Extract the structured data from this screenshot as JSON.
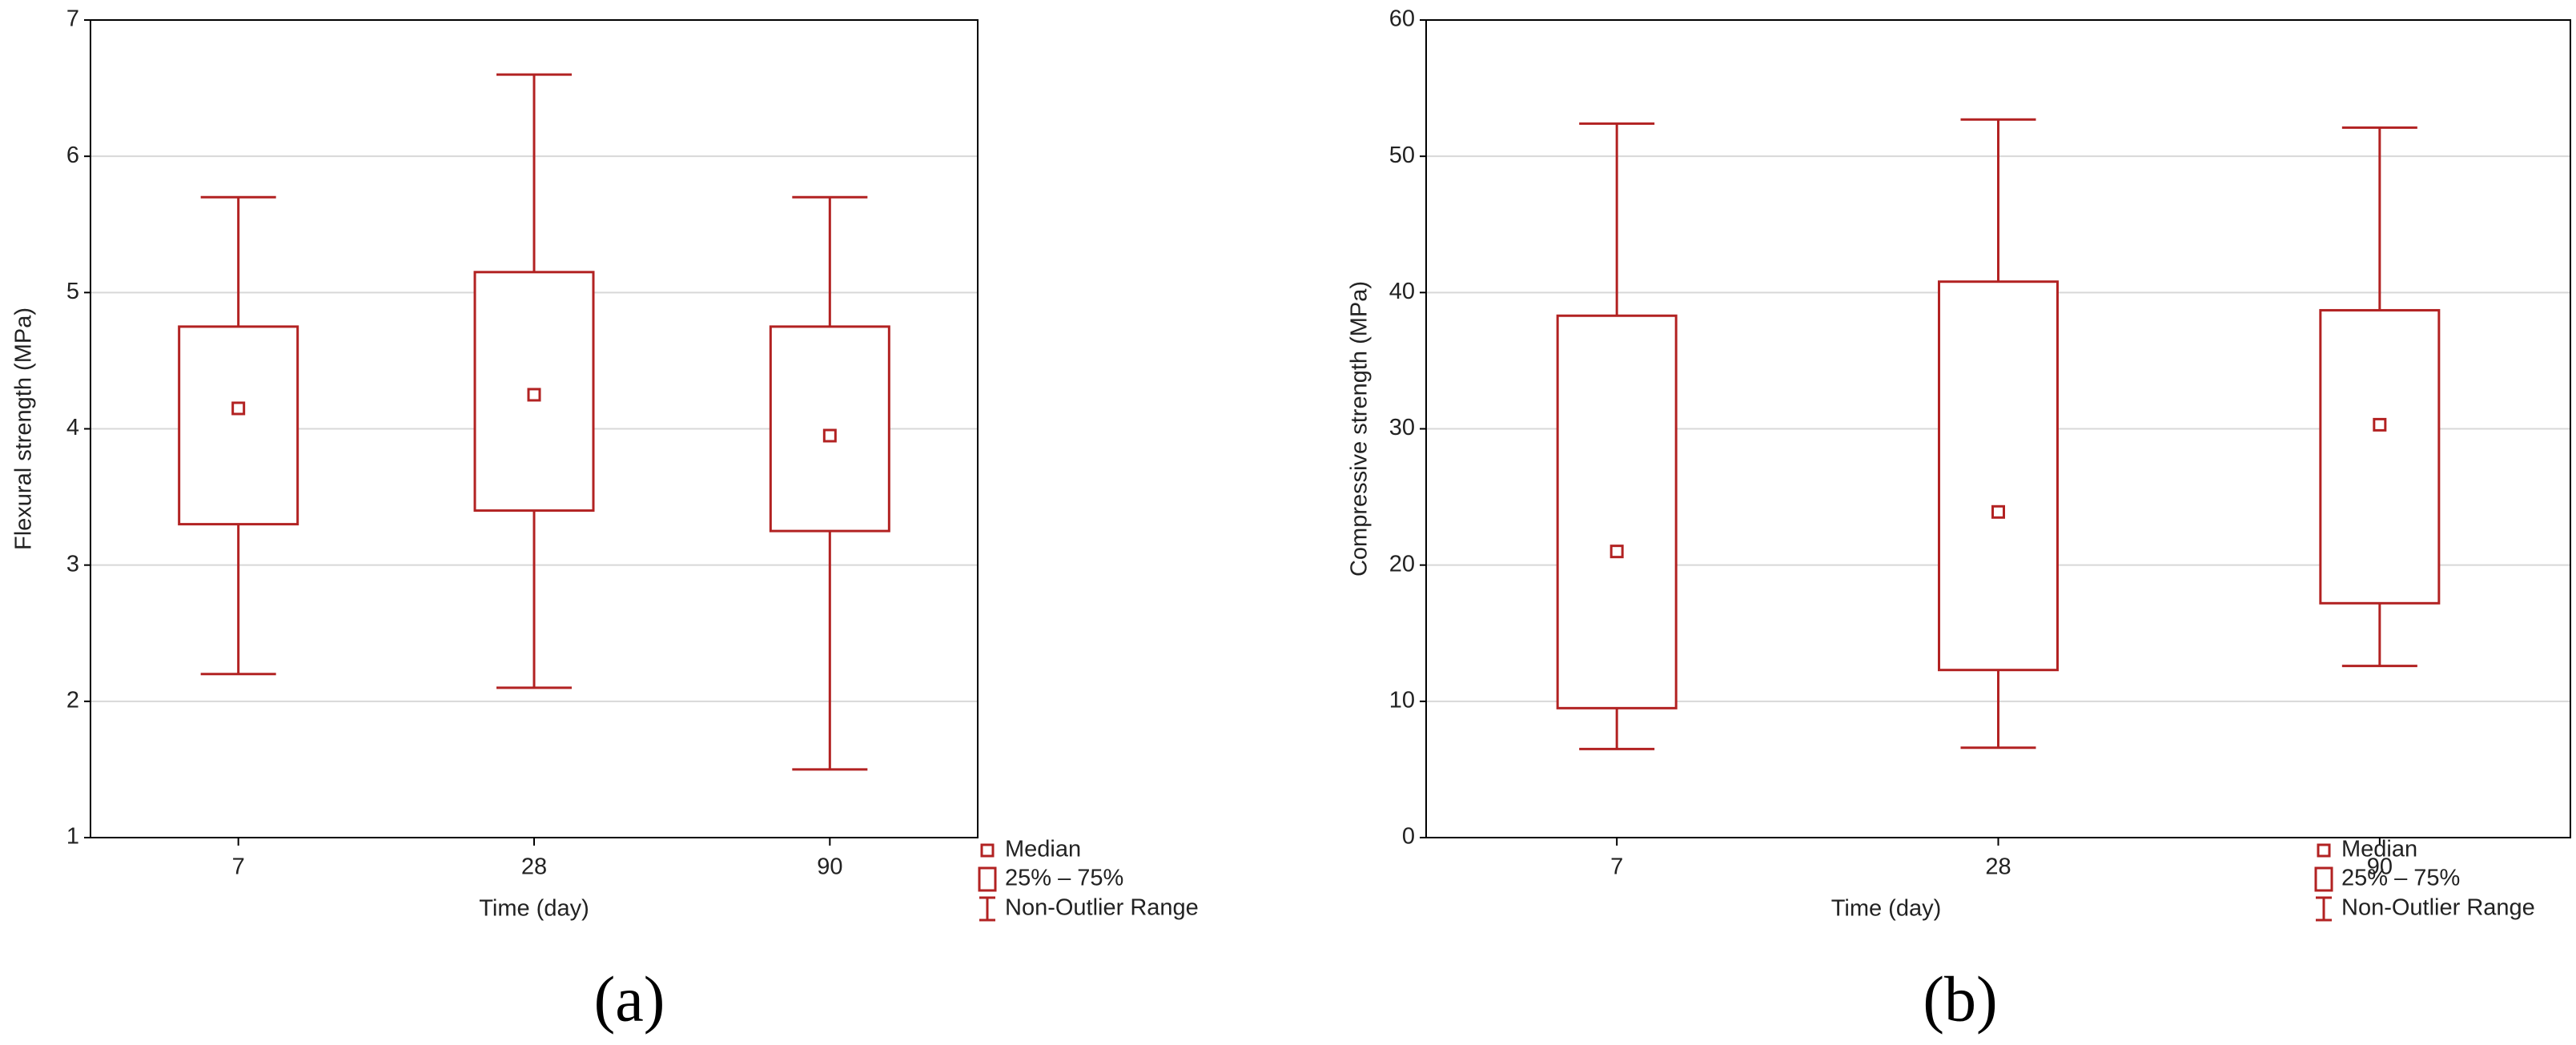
{
  "chart_data": [
    {
      "type": "box",
      "panel_label": "(a)",
      "x_label": "Time (day)",
      "y_label": "Flexural strength (MPa)",
      "categories": [
        "7",
        "28",
        "90"
      ],
      "color": "#b22222",
      "grid": true,
      "ylim": [
        1,
        7
      ],
      "yticks": [
        1,
        2,
        3,
        4,
        5,
        6,
        7
      ],
      "boxes": [
        {
          "min": 2.2,
          "q1": 3.3,
          "median": 4.15,
          "q3": 4.75,
          "max": 5.7
        },
        {
          "min": 2.1,
          "q1": 3.4,
          "median": 4.25,
          "q3": 5.15,
          "max": 6.6
        },
        {
          "min": 1.5,
          "q1": 3.25,
          "median": 3.95,
          "q3": 4.75,
          "max": 5.7
        }
      ],
      "legend": [
        "Median",
        "25% – 75%",
        "Non-Outlier Range"
      ]
    },
    {
      "type": "box",
      "panel_label": "(b)",
      "x_label": "Time (day)",
      "y_label": "Compressive strength (MPa)",
      "categories": [
        "7",
        "28",
        "90"
      ],
      "color": "#b22222",
      "grid": true,
      "ylim": [
        0,
        60
      ],
      "yticks": [
        0,
        10,
        20,
        30,
        40,
        50,
        60
      ],
      "boxes": [
        {
          "min": 6.5,
          "q1": 9.5,
          "median": 21,
          "q3": 38.3,
          "max": 52.4
        },
        {
          "min": 6.6,
          "q1": 12.3,
          "median": 23.9,
          "q3": 40.8,
          "max": 52.7
        },
        {
          "min": 12.6,
          "q1": 17.2,
          "median": 30.3,
          "q3": 38.7,
          "max": 52.1
        }
      ],
      "legend": [
        "Median",
        "25% – 75%",
        "Non-Outlier Range"
      ]
    }
  ]
}
